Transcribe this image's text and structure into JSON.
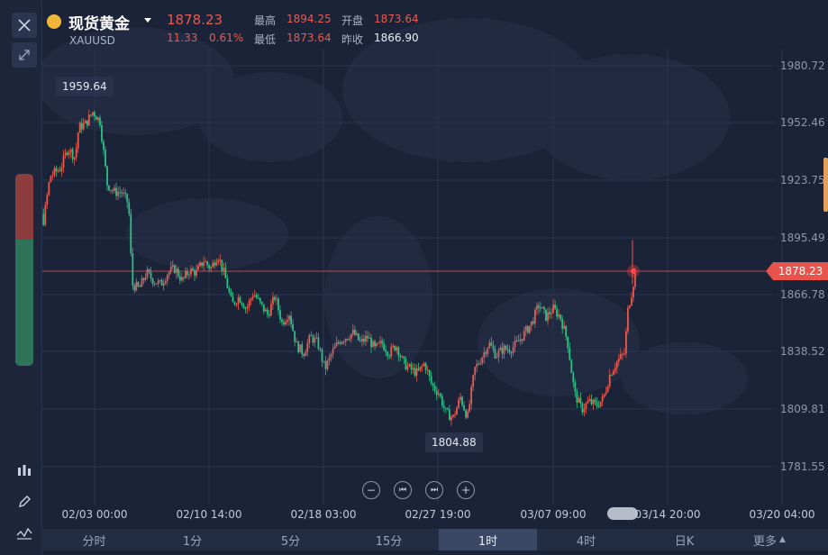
{
  "header": {
    "symbol_name": "现货黄金",
    "symbol_code": "XAUUSD",
    "last_price": "1878.23",
    "change": "11.33",
    "change_pct": "0.61%",
    "high_label": "最高",
    "high": "1894.25",
    "low_label": "最低",
    "low": "1873.64",
    "open_label": "开盘",
    "open": "1873.64",
    "prev_close_label": "昨收",
    "prev_close": "1866.90"
  },
  "chart": {
    "current_price_tag": "1878.23",
    "max_callout": "1959.64",
    "min_callout": "1804.88"
  },
  "chart_data": {
    "type": "candlestick",
    "y_ticks": [
      "1980.72",
      "1952.46",
      "1923.75",
      "1895.49",
      "1866.78",
      "1838.52",
      "1809.81",
      "1781.55"
    ],
    "x_ticks": [
      "02/03 00:00",
      "02/10 14:00",
      "02/18 03:00",
      "02/27 19:00",
      "03/07 09:00",
      "03/14 20:00",
      "03/20 04:00"
    ],
    "ylim": [
      1770,
      1995
    ],
    "series_path": [
      [
        0.0,
        1930
      ],
      [
        0.02,
        1932
      ],
      [
        0.035,
        1902
      ],
      [
        0.045,
        1926
      ],
      [
        0.06,
        1930
      ],
      [
        0.07,
        1940
      ],
      [
        0.08,
        1935
      ],
      [
        0.085,
        1950
      ],
      [
        0.095,
        1952
      ],
      [
        0.105,
        1958
      ],
      [
        0.115,
        1953
      ],
      [
        0.125,
        1922
      ],
      [
        0.135,
        1918
      ],
      [
        0.145,
        1918
      ],
      [
        0.155,
        1912
      ],
      [
        0.16,
        1872
      ],
      [
        0.17,
        1870
      ],
      [
        0.18,
        1878
      ],
      [
        0.19,
        1874
      ],
      [
        0.2,
        1872
      ],
      [
        0.21,
        1878
      ],
      [
        0.22,
        1880
      ],
      [
        0.23,
        1874
      ],
      [
        0.24,
        1879
      ],
      [
        0.25,
        1878
      ],
      [
        0.26,
        1884
      ],
      [
        0.27,
        1880
      ],
      [
        0.28,
        1887
      ],
      [
        0.29,
        1876
      ],
      [
        0.3,
        1862
      ],
      [
        0.31,
        1866
      ],
      [
        0.32,
        1860
      ],
      [
        0.33,
        1868
      ],
      [
        0.34,
        1862
      ],
      [
        0.35,
        1857
      ],
      [
        0.36,
        1866
      ],
      [
        0.37,
        1853
      ],
      [
        0.38,
        1858
      ],
      [
        0.39,
        1842
      ],
      [
        0.4,
        1838
      ],
      [
        0.41,
        1846
      ],
      [
        0.42,
        1843
      ],
      [
        0.43,
        1830
      ],
      [
        0.44,
        1838
      ],
      [
        0.45,
        1844
      ],
      [
        0.46,
        1846
      ],
      [
        0.47,
        1848
      ],
      [
        0.48,
        1843
      ],
      [
        0.49,
        1846
      ],
      [
        0.5,
        1840
      ],
      [
        0.51,
        1843
      ],
      [
        0.52,
        1838
      ],
      [
        0.53,
        1842
      ],
      [
        0.54,
        1833
      ],
      [
        0.55,
        1830
      ],
      [
        0.56,
        1828
      ],
      [
        0.57,
        1833
      ],
      [
        0.58,
        1822
      ],
      [
        0.59,
        1818
      ],
      [
        0.6,
        1808
      ],
      [
        0.61,
        1806
      ],
      [
        0.62,
        1816
      ],
      [
        0.63,
        1806
      ],
      [
        0.64,
        1830
      ],
      [
        0.65,
        1836
      ],
      [
        0.66,
        1843
      ],
      [
        0.67,
        1837
      ],
      [
        0.68,
        1840
      ],
      [
        0.69,
        1840
      ],
      [
        0.7,
        1843
      ],
      [
        0.71,
        1848
      ],
      [
        0.72,
        1853
      ],
      [
        0.73,
        1862
      ],
      [
        0.74,
        1856
      ],
      [
        0.75,
        1860
      ],
      [
        0.76,
        1856
      ],
      [
        0.77,
        1844
      ],
      [
        0.78,
        1818
      ],
      [
        0.79,
        1810
      ],
      [
        0.8,
        1814
      ],
      [
        0.81,
        1812
      ],
      [
        0.82,
        1815
      ],
      [
        0.83,
        1828
      ],
      [
        0.84,
        1834
      ],
      [
        0.85,
        1838
      ],
      [
        0.855,
        1860
      ],
      [
        0.86,
        1868
      ],
      [
        0.865,
        1878
      ]
    ]
  },
  "nav": {
    "zoom_out": "−",
    "prev": "⏮",
    "next": "⏭",
    "zoom_in": "+"
  },
  "periods": [
    "分时",
    "1分",
    "5分",
    "15分",
    "1时",
    "4时",
    "日K",
    "更多"
  ],
  "active_period": "1时",
  "colors": {
    "up": "#e85a4f",
    "down": "#2fbf86",
    "bg": "#1b2338",
    "accent": "#e8544b"
  }
}
